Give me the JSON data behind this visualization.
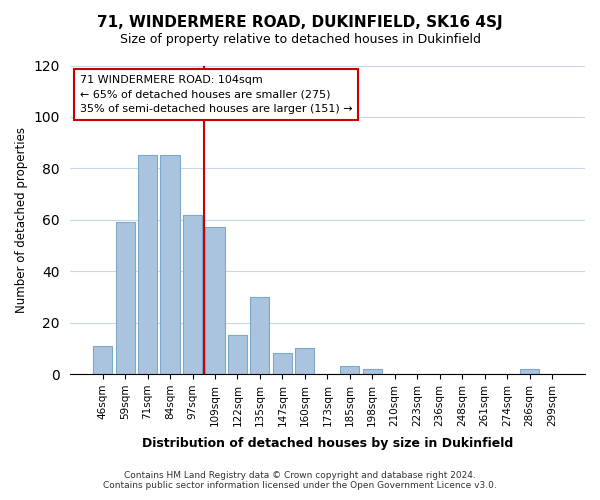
{
  "title": "71, WINDERMERE ROAD, DUKINFIELD, SK16 4SJ",
  "subtitle": "Size of property relative to detached houses in Dukinfield",
  "xlabel": "Distribution of detached houses by size in Dukinfield",
  "ylabel": "Number of detached properties",
  "bar_labels": [
    "46sqm",
    "59sqm",
    "71sqm",
    "84sqm",
    "97sqm",
    "109sqm",
    "122sqm",
    "135sqm",
    "147sqm",
    "160sqm",
    "173sqm",
    "185sqm",
    "198sqm",
    "210sqm",
    "223sqm",
    "236sqm",
    "248sqm",
    "261sqm",
    "274sqm",
    "286sqm",
    "299sqm"
  ],
  "bar_values": [
    11,
    59,
    85,
    85,
    62,
    57,
    15,
    30,
    8,
    10,
    0,
    3,
    2,
    0,
    0,
    0,
    0,
    0,
    0,
    2,
    0
  ],
  "bar_color": "#aac4e0",
  "bar_edge_color": "#7aaac8",
  "vline_x_index": 5,
  "vline_color": "#cc0000",
  "ylim": [
    0,
    120
  ],
  "yticks": [
    0,
    20,
    40,
    60,
    80,
    100,
    120
  ],
  "annotation_title": "71 WINDERMERE ROAD: 104sqm",
  "annotation_line1": "← 65% of detached houses are smaller (275)",
  "annotation_line2": "35% of semi-detached houses are larger (151) →",
  "annotation_box_color": "#ffffff",
  "annotation_box_edge": "#cc0000",
  "footer_line1": "Contains HM Land Registry data © Crown copyright and database right 2024.",
  "footer_line2": "Contains public sector information licensed under the Open Government Licence v3.0."
}
